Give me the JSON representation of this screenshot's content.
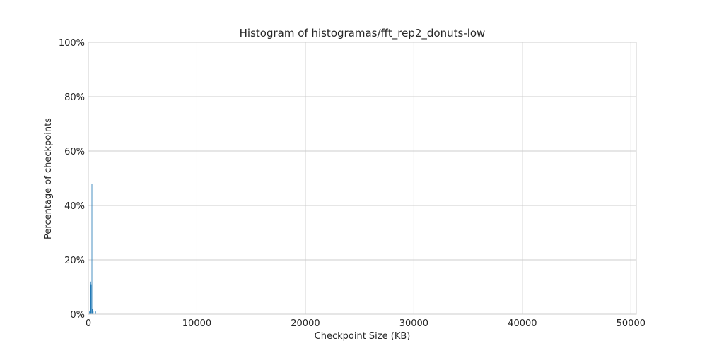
{
  "chart_data": {
    "type": "bar",
    "title": "Histogram of histogramas/fft_rep2_donuts-low",
    "xlabel": "Checkpoint Size (KB)",
    "ylabel": "Percentage of checkpoints",
    "xlim": [
      0,
      50500
    ],
    "ylim": [
      0,
      100
    ],
    "xticks": [
      0,
      10000,
      20000,
      30000,
      40000,
      50000
    ],
    "yticks": [
      0,
      20,
      40,
      60,
      80,
      100
    ],
    "ytick_suffix": "%",
    "grid": true,
    "bar_color": "#1f77b4",
    "bins": [
      {
        "x0": 80,
        "x1": 120,
        "value": 1.0
      },
      {
        "x0": 150,
        "x1": 190,
        "value": 11.5
      },
      {
        "x0": 190,
        "x1": 230,
        "value": 12.0
      },
      {
        "x0": 230,
        "x1": 270,
        "value": 11.0
      },
      {
        "x0": 300,
        "x1": 340,
        "value": 48.0
      },
      {
        "x0": 340,
        "x1": 380,
        "value": 2.0
      },
      {
        "x0": 420,
        "x1": 460,
        "value": 1.0
      },
      {
        "x0": 590,
        "x1": 630,
        "value": 3.5
      },
      {
        "x0": 640,
        "x1": 680,
        "value": 1.0
      }
    ]
  }
}
